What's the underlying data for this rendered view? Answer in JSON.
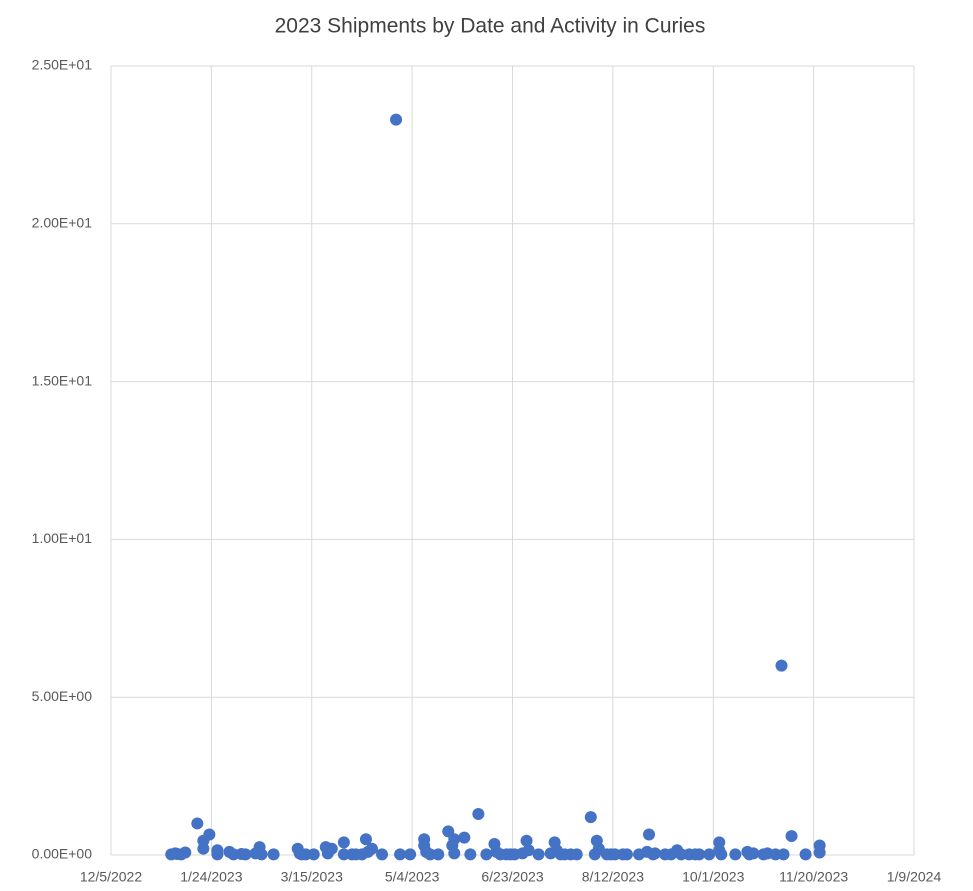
{
  "chart_data": {
    "type": "scatter",
    "title": "2023 Shipments by Date and Activity in Curies",
    "x": [
      44930,
      44932,
      44933,
      44935,
      44937,
      44943,
      44946,
      44946,
      44949,
      44953,
      44953,
      44959,
      44961,
      44965,
      44967,
      44972,
      44974,
      44975,
      44981,
      44993,
      44994,
      44995,
      44997,
      45001,
      45007,
      45008,
      45010,
      45016,
      45016,
      45020,
      45022,
      45025,
      45027,
      45028,
      45030,
      45035,
      45042,
      45044,
      45049,
      45056,
      45056,
      45057,
      45059,
      45063,
      45068,
      45070,
      45071,
      45071,
      45076,
      45079,
      45083,
      45087,
      45091,
      45092,
      45094,
      45097,
      45099,
      45101,
      45105,
      45107,
      45108,
      45113,
      45119,
      45121,
      45122,
      45124,
      45126,
      45129,
      45132,
      45139,
      45141,
      45142,
      45143,
      45147,
      45149,
      45151,
      45155,
      45157,
      45163,
      45167,
      45168,
      45170,
      45171,
      45176,
      45179,
      45182,
      45184,
      45188,
      45191,
      45193,
      45198,
      45203,
      45203,
      45204,
      45211,
      45217,
      45218,
      45220,
      45225,
      45227,
      45231,
      45234,
      45235,
      45239,
      45246,
      45253,
      45253
    ],
    "values": [
      0.02,
      0.05,
      0.03,
      0.02,
      0.08,
      1.0,
      0.45,
      0.2,
      0.65,
      0.15,
      0.02,
      0.1,
      0.02,
      0.03,
      0.02,
      0.05,
      0.25,
      0.02,
      0.02,
      0.2,
      0.05,
      0.02,
      0.02,
      0.02,
      0.25,
      0.05,
      0.2,
      0.4,
      0.02,
      0.02,
      0.02,
      0.02,
      0.5,
      0.1,
      0.2,
      0.02,
      23.3,
      0.02,
      0.02,
      0.5,
      0.3,
      0.1,
      0.02,
      0.02,
      0.75,
      0.3,
      0.05,
      0.5,
      0.55,
      0.02,
      1.3,
      0.02,
      0.35,
      0.1,
      0.02,
      0.02,
      0.02,
      0.02,
      0.05,
      0.45,
      0.15,
      0.02,
      0.05,
      0.4,
      0.15,
      0.02,
      0.02,
      0.02,
      0.02,
      1.2,
      0.02,
      0.45,
      0.2,
      0.02,
      0.02,
      0.02,
      0.02,
      0.02,
      0.02,
      0.1,
      0.65,
      0.02,
      0.05,
      0.02,
      0.02,
      0.15,
      0.02,
      0.02,
      0.02,
      0.02,
      0.02,
      0.4,
      0.15,
      0.02,
      0.02,
      0.1,
      0.02,
      0.05,
      0.02,
      0.05,
      0.02,
      6.0,
      0.02,
      0.6,
      0.02,
      0.3,
      0.08
    ],
    "color": "#4472c4",
    "xlim": [
      44900,
      45300
    ],
    "xticks": [
      {
        "value": 44900,
        "label": "12/5/2022"
      },
      {
        "value": 44950,
        "label": "1/24/2023"
      },
      {
        "value": 45000,
        "label": "3/15/2023"
      },
      {
        "value": 45050,
        "label": "5/4/2023"
      },
      {
        "value": 45100,
        "label": "6/23/2023"
      },
      {
        "value": 45150,
        "label": "8/12/2023"
      },
      {
        "value": 45200,
        "label": "10/1/2023"
      },
      {
        "value": 45250,
        "label": "11/20/2023"
      },
      {
        "value": 45300,
        "label": "1/9/2024"
      }
    ],
    "ylim": [
      0,
      25
    ],
    "yticks": [
      {
        "value": 0,
        "label": "0.00E+00"
      },
      {
        "value": 5,
        "label": "5.00E+00"
      },
      {
        "value": 10,
        "label": "1.00E+01"
      },
      {
        "value": 15,
        "label": "1.50E+01"
      },
      {
        "value": 20,
        "label": "2.00E+01"
      },
      {
        "value": 25,
        "label": "2.50E+01"
      }
    ],
    "grid": true
  }
}
